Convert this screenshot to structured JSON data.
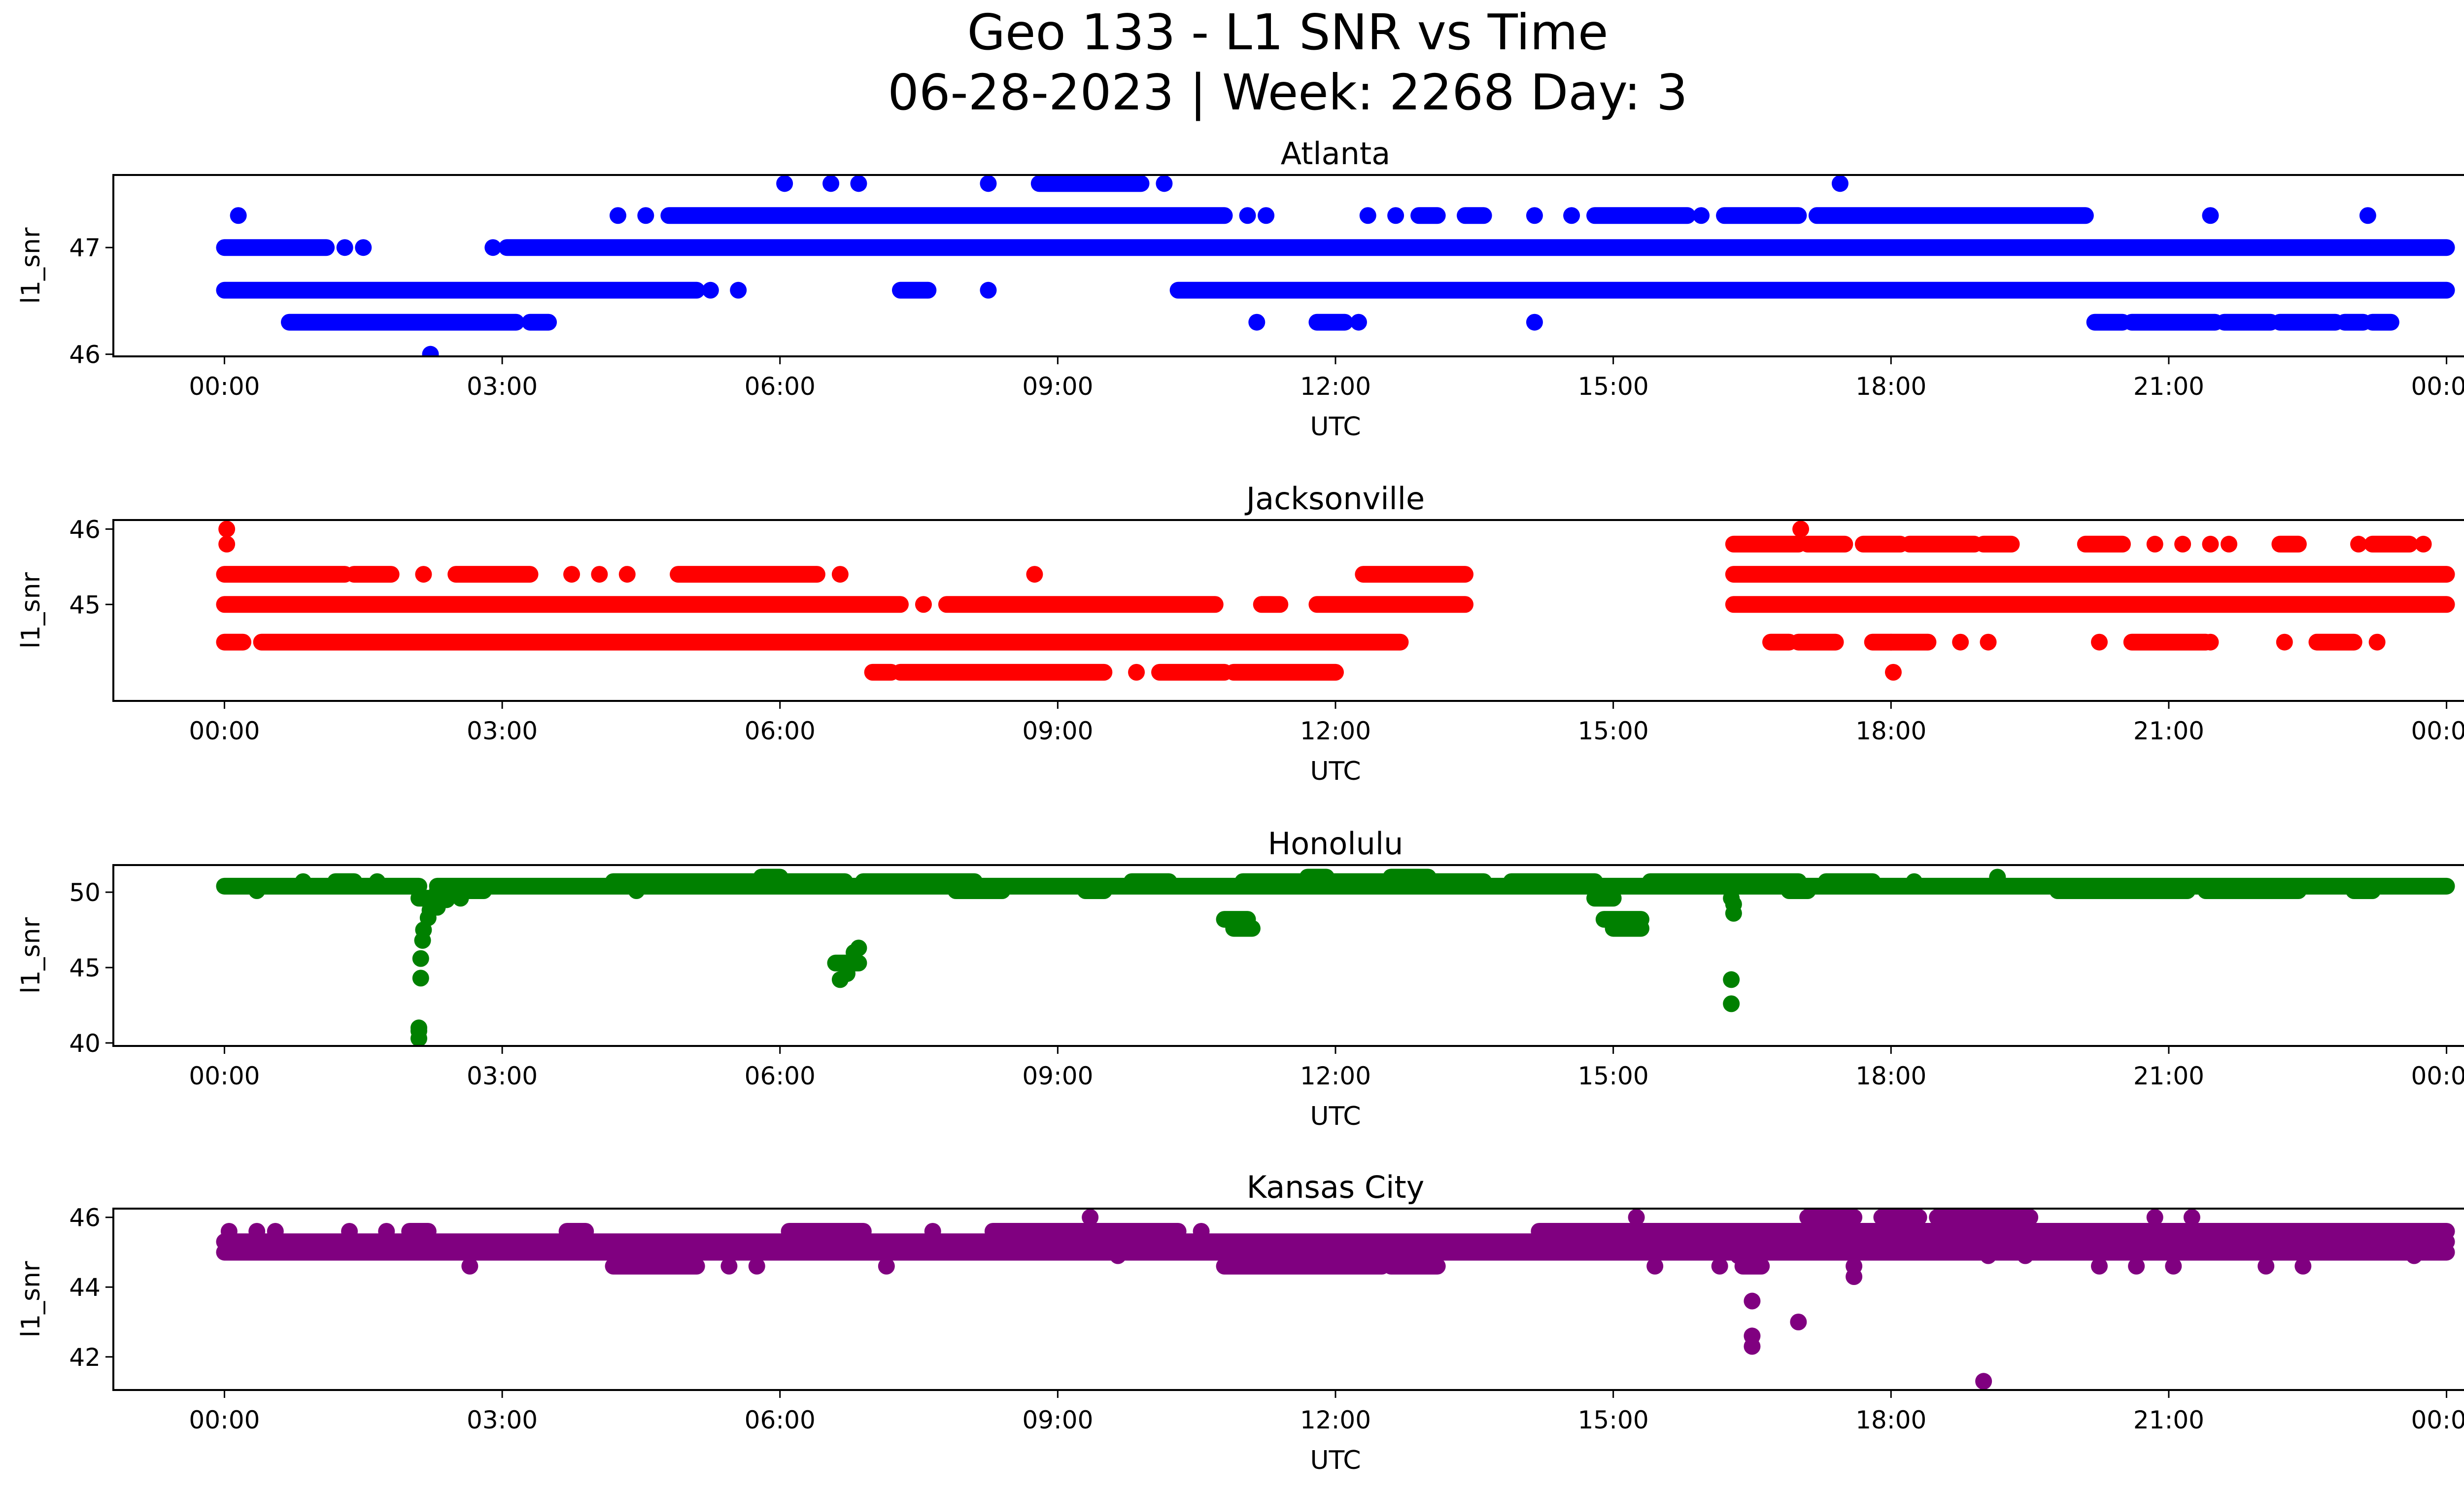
{
  "figure": {
    "title_line1": "Geo 133 - L1 SNR vs Time",
    "title_line2": "06-28-2023 | Week: 2268 Day: 3"
  },
  "chart_data": [
    {
      "type": "scatter",
      "title": "Atlanta",
      "xlabel": "UTC",
      "ylabel": "l1_snr",
      "color": "#0000ff",
      "xticks": [
        "00:00",
        "03:00",
        "06:00",
        "09:00",
        "12:00",
        "15:00",
        "18:00",
        "21:00",
        "00:00"
      ],
      "yticks": [
        "46",
        "47"
      ],
      "ylim": [
        45.98,
        47.68
      ],
      "xlim_hours": [
        -1.2,
        25.2
      ],
      "segments": [
        {
          "y": 47.0,
          "ranges": [
            [
              0.0,
              1.1
            ],
            [
              1.25,
              1.35
            ],
            [
              1.45,
              1.55
            ],
            [
              2.85,
              2.95
            ],
            [
              3.05,
              24.0
            ]
          ]
        },
        {
          "y": 46.6,
          "ranges": [
            [
              0.0,
              5.1
            ],
            [
              5.2,
              5.3
            ],
            [
              5.5,
              5.6
            ],
            [
              7.3,
              7.6
            ],
            [
              8.2,
              8.3
            ],
            [
              10.3,
              24.0
            ]
          ]
        },
        {
          "y": 46.3,
          "ranges": [
            [
              0.7,
              3.15
            ],
            [
              3.3,
              3.5
            ],
            [
              11.1,
              11.2
            ],
            [
              11.8,
              12.1
            ],
            [
              12.2,
              12.3
            ],
            [
              14.1,
              14.2
            ],
            [
              20.2,
              20.5
            ],
            [
              20.6,
              21.5
            ],
            [
              21.6,
              22.1
            ],
            [
              22.2,
              22.8
            ],
            [
              22.9,
              23.1
            ],
            [
              23.2,
              23.4
            ]
          ]
        },
        {
          "y": 47.3,
          "ranges": [
            [
              0.1,
              0.2
            ],
            [
              4.2,
              4.3
            ],
            [
              4.5,
              4.6
            ],
            [
              4.8,
              10.8
            ],
            [
              11.0,
              11.1
            ],
            [
              11.2,
              11.3
            ],
            [
              12.3,
              12.4
            ],
            [
              12.6,
              12.7
            ],
            [
              12.9,
              13.1
            ],
            [
              13.4,
              13.6
            ],
            [
              14.1,
              14.2
            ],
            [
              14.5,
              14.6
            ],
            [
              14.8,
              15.8
            ],
            [
              15.9,
              16.0
            ],
            [
              16.2,
              17.0
            ],
            [
              17.2,
              20.1
            ],
            [
              21.4,
              21.5
            ],
            [
              23.1,
              23.2
            ]
          ]
        },
        {
          "y": 47.6,
          "ranges": [
            [
              6.0,
              6.1
            ],
            [
              6.5,
              6.6
            ],
            [
              6.8,
              6.9
            ],
            [
              8.2,
              8.3
            ],
            [
              8.8,
              9.9
            ],
            [
              10.1,
              10.2
            ],
            [
              17.4,
              17.5
            ]
          ]
        },
        {
          "y": 46.0,
          "ranges": [
            [
              2.2,
              2.25
            ]
          ]
        }
      ]
    },
    {
      "type": "scatter",
      "title": "Jacksonville",
      "xlabel": "UTC",
      "ylabel": "l1_snr",
      "color": "#ff0000",
      "xticks": [
        "00:00",
        "03:00",
        "06:00",
        "09:00",
        "12:00",
        "15:00",
        "18:00",
        "21:00",
        "00:00"
      ],
      "yticks": [
        "45",
        "46"
      ],
      "ylim": [
        43.72,
        46.12
      ],
      "xlim_hours": [
        -1.2,
        25.2
      ],
      "segments": [
        {
          "y": 45.0,
          "ranges": [
            [
              0.0,
              7.3
            ],
            [
              7.5,
              7.6
            ],
            [
              7.8,
              10.7
            ],
            [
              11.2,
              11.4
            ],
            [
              11.8,
              13.4
            ],
            [
              16.3,
              24.0
            ]
          ]
        },
        {
          "y": 45.4,
          "ranges": [
            [
              0.0,
              1.3
            ],
            [
              1.4,
              1.8
            ],
            [
              2.1,
              2.2
            ],
            [
              2.5,
              3.3
            ],
            [
              3.7,
              3.8
            ],
            [
              4.0,
              4.1
            ],
            [
              4.3,
              4.4
            ],
            [
              4.9,
              6.4
            ],
            [
              6.6,
              6.7
            ],
            [
              8.7,
              8.8
            ],
            [
              12.3,
              13.4
            ],
            [
              16.3,
              24.0
            ]
          ]
        },
        {
          "y": 44.5,
          "ranges": [
            [
              0.0,
              0.2
            ],
            [
              0.4,
              12.7
            ],
            [
              16.7,
              16.9
            ],
            [
              17.0,
              17.4
            ],
            [
              17.8,
              18.0
            ],
            [
              18.0,
              18.4
            ],
            [
              18.7,
              18.8
            ],
            [
              19.0,
              19.1
            ],
            [
              20.2,
              20.3
            ],
            [
              20.6,
              21.4
            ],
            [
              21.4,
              21.5
            ],
            [
              22.2,
              22.3
            ],
            [
              22.6,
              23.0
            ],
            [
              23.2,
              23.3
            ]
          ]
        },
        {
          "y": 44.1,
          "ranges": [
            [
              7.0,
              7.2
            ],
            [
              7.3,
              9.5
            ],
            [
              9.8,
              9.9
            ],
            [
              10.1,
              10.8
            ],
            [
              10.9,
              12.0
            ]
          ]
        },
        {
          "y": 45.8,
          "ranges": [
            [
              0.0,
              0.05
            ],
            [
              16.3,
              17.0
            ],
            [
              17.1,
              17.5
            ],
            [
              17.7,
              18.1
            ],
            [
              18.2,
              18.9
            ],
            [
              19.0,
              19.3
            ],
            [
              20.1,
              20.5
            ],
            [
              20.8,
              20.9
            ],
            [
              21.1,
              21.2
            ],
            [
              21.4,
              21.5
            ],
            [
              21.6,
              21.7
            ],
            [
              22.2,
              22.4
            ],
            [
              23.0,
              23.1
            ],
            [
              23.2,
              23.6
            ],
            [
              23.7,
              23.8
            ]
          ]
        },
        {
          "y": 46.0,
          "ranges": [
            [
              0.0,
              0.05
            ],
            [
              17.0,
              17.05
            ]
          ]
        },
        {
          "y": 44.1,
          "ranges": [
            [
              18.0,
              18.05
            ]
          ]
        }
      ]
    },
    {
      "type": "scatter",
      "title": "Honolulu",
      "xlabel": "UTC",
      "ylabel": "l1_snr",
      "color": "#008000",
      "xticks": [
        "00:00",
        "03:00",
        "06:00",
        "09:00",
        "12:00",
        "15:00",
        "18:00",
        "21:00",
        "00:00"
      ],
      "yticks": [
        "40",
        "45",
        "50"
      ],
      "ylim": [
        39.8,
        51.8
      ],
      "xlim_hours": [
        -1.2,
        25.2
      ],
      "segments": [
        {
          "y": 50.4,
          "ranges": [
            [
              0.0,
              2.1
            ],
            [
              2.3,
              24.0
            ]
          ]
        },
        {
          "y": 50.7,
          "ranges": [
            [
              0.8,
              0.9
            ],
            [
              1.2,
              1.4
            ],
            [
              1.6,
              1.7
            ],
            [
              4.2,
              6.7
            ],
            [
              6.9,
              8.1
            ],
            [
              9.8,
              10.2
            ],
            [
              11.0,
              13.6
            ],
            [
              13.9,
              14.8
            ],
            [
              15.4,
              17.0
            ],
            [
              17.3,
              17.8
            ],
            [
              18.2,
              18.3
            ],
            [
              19.1,
              19.2
            ]
          ]
        },
        {
          "y": 50.1,
          "ranges": [
            [
              0.3,
              0.4
            ],
            [
              2.3,
              2.8
            ],
            [
              4.4,
              4.5
            ],
            [
              7.9,
              8.4
            ],
            [
              9.3,
              9.5
            ],
            [
              16.9,
              17.1
            ],
            [
              19.8,
              21.2
            ],
            [
              21.4,
              22.4
            ],
            [
              23.0,
              23.2
            ]
          ]
        },
        {
          "y": 51.0,
          "ranges": [
            [
              5.8,
              6.0
            ],
            [
              11.7,
              11.9
            ],
            [
              12.6,
              13.0
            ],
            [
              19.1,
              19.2
            ]
          ]
        },
        {
          "y": 49.6,
          "ranges": [
            [
              2.1,
              2.35
            ],
            [
              2.5,
              2.6
            ],
            [
              14.8,
              15.0
            ],
            [
              16.2,
              16.35
            ]
          ]
        },
        {
          "y": 48.2,
          "ranges": [
            [
              10.8,
              11.05
            ],
            [
              14.9,
              15.3
            ]
          ]
        },
        {
          "y": 47.6,
          "ranges": [
            [
              10.9,
              11.1
            ],
            [
              15.0,
              15.3
            ]
          ]
        },
        {
          "y": 45.3,
          "ranges": [
            [
              6.6,
              6.85
            ]
          ]
        },
        {
          "y": 44.6,
          "ranges": [
            [
              6.65,
              6.8
            ]
          ]
        },
        {
          "y": 44.2,
          "ranges": [
            [
              16.25,
              16.3
            ],
            [
              6.6,
              6.7
            ]
          ]
        },
        {
          "y": 42.6,
          "ranges": [
            [
              16.25,
              16.3
            ]
          ]
        }
      ],
      "points": [
        [
          2.1,
          40.3
        ],
        [
          2.1,
          40.8
        ],
        [
          2.1,
          41.0
        ],
        [
          2.12,
          44.3
        ],
        [
          2.12,
          45.6
        ],
        [
          2.14,
          46.8
        ],
        [
          2.15,
          47.5
        ],
        [
          2.2,
          48.3
        ],
        [
          2.22,
          48.8
        ],
        [
          2.3,
          49.0
        ],
        [
          2.4,
          49.5
        ],
        [
          16.3,
          48.6
        ],
        [
          16.3,
          49.2
        ],
        [
          6.8,
          46.0
        ],
        [
          6.85,
          46.3
        ]
      ]
    },
    {
      "type": "scatter",
      "title": "Kansas City",
      "xlabel": "UTC",
      "ylabel": "l1_snr",
      "color": "#800080",
      "xticks": [
        "00:00",
        "03:00",
        "06:00",
        "09:00",
        "12:00",
        "15:00",
        "18:00",
        "21:00",
        "00:00"
      ],
      "yticks": [
        "42",
        "44",
        "46"
      ],
      "ylim": [
        41.05,
        46.25
      ],
      "xlim_hours": [
        -1.2,
        25.2
      ],
      "segments": [
        {
          "y": 45.0,
          "ranges": [
            [
              0.0,
              24.0
            ]
          ]
        },
        {
          "y": 45.3,
          "ranges": [
            [
              0.0,
              24.0
            ]
          ]
        },
        {
          "y": 45.6,
          "ranges": [
            [
              0.0,
              0.1
            ],
            [
              0.3,
              0.4
            ],
            [
              0.5,
              0.6
            ],
            [
              1.3,
              1.4
            ],
            [
              1.7,
              1.8
            ],
            [
              2.0,
              2.2
            ],
            [
              3.7,
              3.9
            ],
            [
              6.1,
              6.9
            ],
            [
              7.6,
              7.7
            ],
            [
              8.3,
              10.3
            ],
            [
              10.5,
              10.6
            ],
            [
              14.2,
              24.0
            ]
          ]
        },
        {
          "y": 44.6,
          "ranges": [
            [
              2.6,
              2.7
            ],
            [
              4.2,
              5.1
            ],
            [
              5.4,
              5.5
            ],
            [
              5.7,
              5.8
            ],
            [
              7.1,
              7.2
            ],
            [
              10.8,
              12.5
            ],
            [
              12.6,
              13.1
            ],
            [
              15.4,
              15.5
            ],
            [
              16.1,
              16.2
            ],
            [
              16.4,
              16.6
            ],
            [
              20.2,
              20.3
            ],
            [
              20.6,
              20.7
            ],
            [
              21.0,
              21.1
            ],
            [
              22.0,
              22.1
            ],
            [
              22.4,
              22.5
            ]
          ]
        },
        {
          "y": 46.0,
          "ranges": [
            [
              9.3,
              9.4
            ],
            [
              15.2,
              15.3
            ],
            [
              17.1,
              17.6
            ],
            [
              17.9,
              18.3
            ],
            [
              18.5,
              19.5
            ],
            [
              20.8,
              20.9
            ],
            [
              21.2,
              21.3
            ]
          ]
        },
        {
          "y": 44.9,
          "ranges": [
            [
              9.6,
              9.7
            ],
            [
              16.3,
              16.4
            ],
            [
              19.0,
              19.1
            ],
            [
              19.4,
              19.5
            ],
            [
              23.6,
              23.7
            ]
          ]
        }
      ],
      "points": [
        [
          16.5,
          43.6
        ],
        [
          16.5,
          42.6
        ],
        [
          16.5,
          42.3
        ],
        [
          17.0,
          43.0
        ],
        [
          17.6,
          44.6
        ],
        [
          17.6,
          44.3
        ],
        [
          19.0,
          41.3
        ]
      ]
    }
  ]
}
